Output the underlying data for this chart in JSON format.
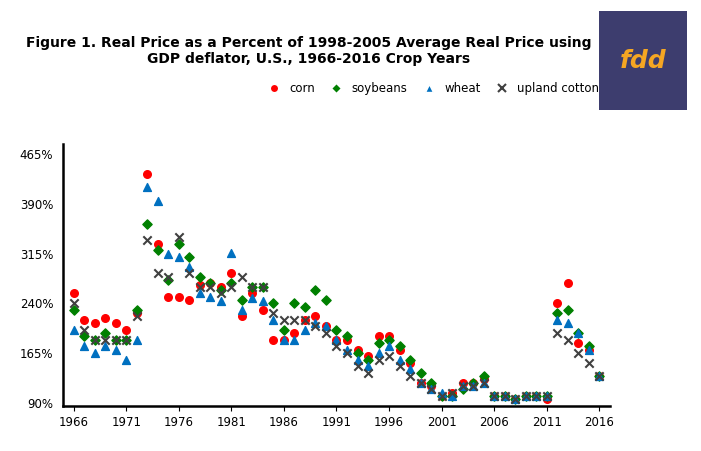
{
  "title": "Figure 1. Real Price as a Percent of 1998-2005 Average Real Price using\nGDP deflator, U.S., 1966-2016 Crop Years",
  "title_fontsize": 10,
  "fdd_box_color": "#3d3d6e",
  "fdd_text_color": "#f5a623",
  "corn": {
    "years": [
      1966,
      1967,
      1968,
      1969,
      1970,
      1971,
      1972,
      1973,
      1974,
      1975,
      1976,
      1977,
      1978,
      1979,
      1980,
      1981,
      1982,
      1983,
      1984,
      1985,
      1986,
      1987,
      1988,
      1989,
      1990,
      1991,
      1992,
      1993,
      1994,
      1995,
      1996,
      1997,
      1998,
      1999,
      2000,
      2001,
      2002,
      2003,
      2004,
      2005,
      2006,
      2007,
      2008,
      2009,
      2010,
      2011,
      2012,
      2013,
      2014,
      2015,
      2016
    ],
    "values": [
      255,
      215,
      210,
      218,
      210,
      200,
      225,
      435,
      330,
      250,
      250,
      245,
      268,
      270,
      265,
      286,
      220,
      255,
      230,
      185,
      185,
      195,
      215,
      220,
      205,
      185,
      185,
      170,
      160,
      190,
      190,
      170,
      150,
      120,
      115,
      100,
      105,
      120,
      120,
      125,
      100,
      100,
      95,
      100,
      100,
      95,
      240,
      270,
      180,
      170,
      130
    ],
    "color": "#ff0000",
    "marker": "o",
    "label": "corn"
  },
  "soybeans": {
    "years": [
      1966,
      1967,
      1968,
      1969,
      1970,
      1971,
      1972,
      1973,
      1974,
      1975,
      1976,
      1977,
      1978,
      1979,
      1980,
      1981,
      1982,
      1983,
      1984,
      1985,
      1986,
      1987,
      1988,
      1989,
      1990,
      1991,
      1992,
      1993,
      1994,
      1995,
      1996,
      1997,
      1998,
      1999,
      2000,
      2001,
      2002,
      2003,
      2004,
      2005,
      2006,
      2007,
      2008,
      2009,
      2010,
      2011,
      2012,
      2013,
      2014,
      2015,
      2016
    ],
    "values": [
      230,
      190,
      185,
      195,
      185,
      185,
      230,
      360,
      320,
      275,
      330,
      310,
      280,
      270,
      260,
      270,
      245,
      265,
      265,
      240,
      200,
      240,
      235,
      260,
      245,
      200,
      190,
      165,
      155,
      180,
      185,
      175,
      155,
      135,
      120,
      100,
      100,
      110,
      120,
      130,
      100,
      100,
      95,
      100,
      100,
      100,
      225,
      230,
      195,
      175,
      130
    ],
    "color": "#008000",
    "marker": "D",
    "label": "soybeans"
  },
  "wheat": {
    "years": [
      1966,
      1967,
      1968,
      1969,
      1970,
      1971,
      1972,
      1973,
      1974,
      1975,
      1976,
      1977,
      1978,
      1979,
      1980,
      1981,
      1982,
      1983,
      1984,
      1985,
      1986,
      1987,
      1988,
      1989,
      1990,
      1991,
      1992,
      1993,
      1994,
      1995,
      1996,
      1997,
      1998,
      1999,
      2000,
      2001,
      2002,
      2003,
      2004,
      2005,
      2006,
      2007,
      2008,
      2009,
      2010,
      2011,
      2012,
      2013,
      2014,
      2015,
      2016
    ],
    "values": [
      200,
      175,
      165,
      175,
      170,
      155,
      185,
      415,
      395,
      315,
      310,
      295,
      255,
      250,
      243,
      316,
      230,
      248,
      243,
      215,
      185,
      185,
      200,
      210,
      205,
      185,
      170,
      155,
      145,
      165,
      175,
      155,
      140,
      120,
      110,
      105,
      100,
      115,
      115,
      120,
      100,
      100,
      95,
      100,
      100,
      100,
      215,
      210,
      195,
      170,
      130
    ],
    "color": "#0070c0",
    "marker": "^",
    "label": "wheat"
  },
  "upland_cotton": {
    "years": [
      1966,
      1967,
      1968,
      1969,
      1970,
      1971,
      1972,
      1973,
      1974,
      1975,
      1976,
      1977,
      1978,
      1979,
      1980,
      1981,
      1982,
      1983,
      1984,
      1985,
      1986,
      1987,
      1988,
      1989,
      1990,
      1991,
      1992,
      1993,
      1994,
      1995,
      1996,
      1997,
      1998,
      1999,
      2000,
      2001,
      2002,
      2003,
      2004,
      2005,
      2006,
      2007,
      2008,
      2009,
      2010,
      2011,
      2012,
      2013,
      2014,
      2015,
      2016
    ],
    "values": [
      240,
      200,
      185,
      185,
      185,
      185,
      220,
      335,
      285,
      280,
      340,
      285,
      265,
      265,
      255,
      265,
      280,
      265,
      265,
      225,
      215,
      215,
      215,
      205,
      195,
      175,
      165,
      145,
      135,
      155,
      160,
      145,
      130,
      120,
      110,
      100,
      105,
      115,
      115,
      120,
      100,
      100,
      95,
      100,
      100,
      100,
      195,
      185,
      165,
      150,
      130
    ],
    "color": "#404040",
    "marker": "x",
    "label": "upland cotton"
  },
  "yticks": [
    90,
    165,
    240,
    315,
    390,
    465
  ],
  "xticks": [
    1966,
    1971,
    1976,
    1981,
    1986,
    1991,
    1996,
    2001,
    2006,
    2011,
    2016
  ],
  "ylim": [
    85,
    480
  ],
  "xlim": [
    1965.0,
    2017.0
  ]
}
